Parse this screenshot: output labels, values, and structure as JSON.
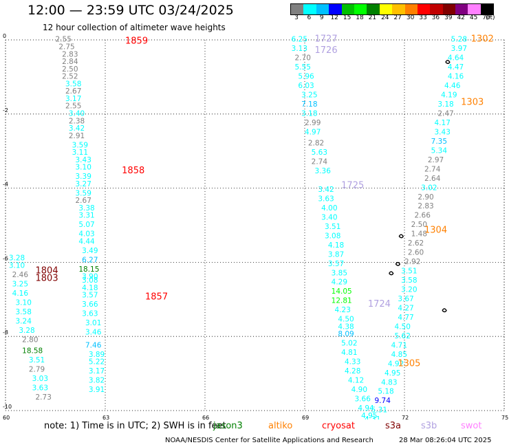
{
  "header": {
    "title": "12:00 — 23:59 UTC 03/24/2025",
    "subtitle": "12 hour collection of altimeter wave heights"
  },
  "colorbar": {
    "labels": [
      "3",
      "6",
      "9",
      "12",
      "15",
      "18",
      "21",
      "24",
      "27",
      "30",
      "33",
      "36",
      "39",
      "42",
      "45",
      "70"
    ],
    "unit_label": "(ft)",
    "colors": [
      "#808080",
      "#00ffff",
      "#00c0ff",
      "#0000ff",
      "#00c000",
      "#00ff00",
      "#008000",
      "#ffff00",
      "#ffc000",
      "#ff8000",
      "#ff0000",
      "#c00000",
      "#800000",
      "#800080",
      "#ff80ff",
      "#000000"
    ]
  },
  "map": {
    "lon_ticks": [
      "60",
      "63",
      "66",
      "69",
      "72",
      "75"
    ],
    "lat_ticks": [
      "0",
      "-2",
      "-4",
      "-6",
      "-8",
      "-10"
    ],
    "tracks": [
      {
        "label": "1859",
        "color": "#ff0000",
        "lon": 63.6,
        "lat": -0.1
      },
      {
        "label": "1858",
        "color": "#ff0000",
        "lon": 63.5,
        "lat": -3.6
      },
      {
        "label": "1857",
        "color": "#ff0000",
        "lon": 64.2,
        "lat": -7.0
      },
      {
        "label": "1804",
        "color": "#800000",
        "lon": 60.9,
        "lat": -6.3
      },
      {
        "label": "1803",
        "color": "#800000",
        "lon": 60.9,
        "lat": -6.5
      },
      {
        "label": "1727",
        "color": "#b0a0e0",
        "lon": 69.3,
        "lat": -0.05
      },
      {
        "label": "1726",
        "color": "#b0a0e0",
        "lon": 69.3,
        "lat": -0.35
      },
      {
        "label": "1725",
        "color": "#b0a0e0",
        "lon": 70.1,
        "lat": -4.0
      },
      {
        "label": "1724",
        "color": "#b0a0e0",
        "lon": 70.9,
        "lat": -7.2
      },
      {
        "label": "1302",
        "color": "#ff8000",
        "lon": 74.0,
        "lat": -0.05
      },
      {
        "label": "1303",
        "color": "#ff8000",
        "lon": 73.7,
        "lat": -1.75
      },
      {
        "label": "1304",
        "color": "#ff8000",
        "lon": 72.6,
        "lat": -5.2
      },
      {
        "label": "1305",
        "color": "#ff8000",
        "lon": 71.8,
        "lat": -8.8
      }
    ],
    "points": [
      {
        "lon": 61.5,
        "lat": -0.05,
        "v": "2.55",
        "c": "#808080"
      },
      {
        "lon": 61.6,
        "lat": -0.25,
        "v": "2.75",
        "c": "#808080"
      },
      {
        "lon": 61.7,
        "lat": -0.45,
        "v": "2.83",
        "c": "#808080"
      },
      {
        "lon": 61.7,
        "lat": -0.65,
        "v": "2.84",
        "c": "#808080"
      },
      {
        "lon": 61.7,
        "lat": -0.85,
        "v": "2.50",
        "c": "#808080"
      },
      {
        "lon": 61.7,
        "lat": -1.05,
        "v": "2.52",
        "c": "#808080"
      },
      {
        "lon": 61.8,
        "lat": -1.25,
        "v": "3.58",
        "c": "#00ffff"
      },
      {
        "lon": 61.8,
        "lat": -1.45,
        "v": "2.67",
        "c": "#808080"
      },
      {
        "lon": 61.8,
        "lat": -1.65,
        "v": "3.17",
        "c": "#00ffff"
      },
      {
        "lon": 61.8,
        "lat": -1.85,
        "v": "2.55",
        "c": "#808080"
      },
      {
        "lon": 61.9,
        "lat": -2.05,
        "v": "3.40",
        "c": "#00ffff"
      },
      {
        "lon": 61.9,
        "lat": -2.25,
        "v": "2.38",
        "c": "#808080"
      },
      {
        "lon": 61.9,
        "lat": -2.45,
        "v": "3.42",
        "c": "#00ffff"
      },
      {
        "lon": 61.9,
        "lat": -2.65,
        "v": "2.91",
        "c": "#808080"
      },
      {
        "lon": 62.0,
        "lat": -2.9,
        "v": "3.59",
        "c": "#00ffff"
      },
      {
        "lon": 62.0,
        "lat": -3.1,
        "v": "3.11",
        "c": "#00ffff"
      },
      {
        "lon": 62.1,
        "lat": -3.3,
        "v": "3.43",
        "c": "#00ffff"
      },
      {
        "lon": 62.1,
        "lat": -3.5,
        "v": "3.10",
        "c": "#00ffff"
      },
      {
        "lon": 62.1,
        "lat": -3.75,
        "v": "3.39",
        "c": "#00ffff"
      },
      {
        "lon": 62.1,
        "lat": -3.95,
        "v": "3.27",
        "c": "#00ffff"
      },
      {
        "lon": 62.1,
        "lat": -4.2,
        "v": "3.59",
        "c": "#00ffff"
      },
      {
        "lon": 62.1,
        "lat": -4.4,
        "v": "2.67",
        "c": "#808080"
      },
      {
        "lon": 62.2,
        "lat": -4.6,
        "v": "3.38",
        "c": "#00ffff"
      },
      {
        "lon": 62.2,
        "lat": -4.8,
        "v": "3.31",
        "c": "#00ffff"
      },
      {
        "lon": 62.2,
        "lat": -5.05,
        "v": "5.07",
        "c": "#00ffff"
      },
      {
        "lon": 62.2,
        "lat": -5.3,
        "v": "4.03",
        "c": "#00ffff"
      },
      {
        "lon": 62.2,
        "lat": -5.5,
        "v": "4.44",
        "c": "#00ffff"
      },
      {
        "lon": 62.3,
        "lat": -5.75,
        "v": "3.49",
        "c": "#00ffff"
      },
      {
        "lon": 62.3,
        "lat": -6.0,
        "v": "6.27",
        "c": "#00c0ff"
      },
      {
        "lon": 62.2,
        "lat": -6.25,
        "v": "18.15",
        "c": "#008000"
      },
      {
        "lon": 62.3,
        "lat": -6.45,
        "v": "3.90",
        "c": "#00ffff"
      },
      {
        "lon": 62.3,
        "lat": -6.55,
        "v": "3.08",
        "c": "#00ffff"
      },
      {
        "lon": 62.3,
        "lat": -6.75,
        "v": "4.18",
        "c": "#00ffff"
      },
      {
        "lon": 62.3,
        "lat": -6.95,
        "v": "3.57",
        "c": "#00ffff"
      },
      {
        "lon": 62.3,
        "lat": -7.2,
        "v": "3.66",
        "c": "#00ffff"
      },
      {
        "lon": 62.3,
        "lat": -7.45,
        "v": "3.63",
        "c": "#00ffff"
      },
      {
        "lon": 62.4,
        "lat": -7.7,
        "v": "3.01",
        "c": "#00ffff"
      },
      {
        "lon": 62.4,
        "lat": -7.95,
        "v": "3.46",
        "c": "#00ffff"
      },
      {
        "lon": 62.4,
        "lat": -8.3,
        "v": "7.46",
        "c": "#00c0ff"
      },
      {
        "lon": 62.5,
        "lat": -8.55,
        "v": "3.89",
        "c": "#00ffff"
      },
      {
        "lon": 62.5,
        "lat": -8.75,
        "v": "5.22",
        "c": "#00ffff"
      },
      {
        "lon": 62.5,
        "lat": -9.0,
        "v": "3.17",
        "c": "#00ffff"
      },
      {
        "lon": 62.5,
        "lat": -9.25,
        "v": "3.82",
        "c": "#00ffff"
      },
      {
        "lon": 62.5,
        "lat": -9.5,
        "v": "3.91",
        "c": "#00ffff"
      },
      {
        "lon": 60.1,
        "lat": -5.95,
        "v": "3.28",
        "c": "#00ffff"
      },
      {
        "lon": 60.1,
        "lat": -6.15,
        "v": "3.10",
        "c": "#00ffff"
      },
      {
        "lon": 60.2,
        "lat": -6.4,
        "v": "2.46",
        "c": "#808080"
      },
      {
        "lon": 60.2,
        "lat": -6.65,
        "v": "3.25",
        "c": "#00ffff"
      },
      {
        "lon": 60.2,
        "lat": -6.9,
        "v": "4.16",
        "c": "#00ffff"
      },
      {
        "lon": 60.3,
        "lat": -7.15,
        "v": "3.10",
        "c": "#00ffff"
      },
      {
        "lon": 60.3,
        "lat": -7.4,
        "v": "3.58",
        "c": "#00ffff"
      },
      {
        "lon": 60.3,
        "lat": -7.65,
        "v": "3.24",
        "c": "#00ffff"
      },
      {
        "lon": 60.4,
        "lat": -7.9,
        "v": "3.28",
        "c": "#00ffff"
      },
      {
        "lon": 60.5,
        "lat": -8.15,
        "v": "2.80",
        "c": "#808080"
      },
      {
        "lon": 60.5,
        "lat": -8.45,
        "v": "18.58",
        "c": "#008000"
      },
      {
        "lon": 60.7,
        "lat": -8.7,
        "v": "3.51",
        "c": "#00ffff"
      },
      {
        "lon": 60.7,
        "lat": -8.95,
        "v": "2.79",
        "c": "#808080"
      },
      {
        "lon": 60.8,
        "lat": -9.2,
        "v": "3.03",
        "c": "#00ffff"
      },
      {
        "lon": 60.8,
        "lat": -9.45,
        "v": "3.63",
        "c": "#00ffff"
      },
      {
        "lon": 60.9,
        "lat": -9.7,
        "v": "2.73",
        "c": "#808080"
      },
      {
        "lon": 68.6,
        "lat": -0.05,
        "v": "6.25",
        "c": "#00ffff"
      },
      {
        "lon": 68.6,
        "lat": -0.3,
        "v": "3.13",
        "c": "#00ffff"
      },
      {
        "lon": 68.7,
        "lat": -0.55,
        "v": "2.70",
        "c": "#808080"
      },
      {
        "lon": 68.7,
        "lat": -0.8,
        "v": "5.55",
        "c": "#00ffff"
      },
      {
        "lon": 68.8,
        "lat": -1.05,
        "v": "5.96",
        "c": "#00ffff"
      },
      {
        "lon": 68.8,
        "lat": -1.3,
        "v": "6.03",
        "c": "#00ffff"
      },
      {
        "lon": 68.9,
        "lat": -1.55,
        "v": "3.25",
        "c": "#00ffff"
      },
      {
        "lon": 68.9,
        "lat": -1.8,
        "v": "7.18",
        "c": "#00c0ff"
      },
      {
        "lon": 68.9,
        "lat": -2.05,
        "v": "3.18",
        "c": "#00ffff"
      },
      {
        "lon": 69.0,
        "lat": -2.3,
        "v": "2.99",
        "c": "#808080"
      },
      {
        "lon": 69.0,
        "lat": -2.55,
        "v": "4.97",
        "c": "#00ffff"
      },
      {
        "lon": 69.1,
        "lat": -2.85,
        "v": "2.82",
        "c": "#808080"
      },
      {
        "lon": 69.2,
        "lat": -3.1,
        "v": "5.63",
        "c": "#00ffff"
      },
      {
        "lon": 69.2,
        "lat": -3.35,
        "v": "2.74",
        "c": "#808080"
      },
      {
        "lon": 69.3,
        "lat": -3.6,
        "v": "3.36",
        "c": "#00ffff"
      },
      {
        "lon": 69.4,
        "lat": -4.1,
        "v": "3.42",
        "c": "#00ffff"
      },
      {
        "lon": 69.4,
        "lat": -4.35,
        "v": "3.63",
        "c": "#00ffff"
      },
      {
        "lon": 69.5,
        "lat": -4.6,
        "v": "4.00",
        "c": "#00ffff"
      },
      {
        "lon": 69.5,
        "lat": -4.85,
        "v": "3.40",
        "c": "#00ffff"
      },
      {
        "lon": 69.6,
        "lat": -5.1,
        "v": "3.51",
        "c": "#00ffff"
      },
      {
        "lon": 69.6,
        "lat": -5.35,
        "v": "3.08",
        "c": "#00ffff"
      },
      {
        "lon": 69.7,
        "lat": -5.6,
        "v": "4.18",
        "c": "#00ffff"
      },
      {
        "lon": 69.7,
        "lat": -5.85,
        "v": "3.87",
        "c": "#00ffff"
      },
      {
        "lon": 69.7,
        "lat": -6.1,
        "v": "3.57",
        "c": "#00ffff"
      },
      {
        "lon": 69.8,
        "lat": -6.35,
        "v": "3.85",
        "c": "#00ffff"
      },
      {
        "lon": 69.8,
        "lat": -6.6,
        "v": "4.29",
        "c": "#00ffff"
      },
      {
        "lon": 69.8,
        "lat": -6.85,
        "v": "14.05",
        "c": "#00ff00"
      },
      {
        "lon": 69.8,
        "lat": -7.1,
        "v": "12.81",
        "c": "#00ff00"
      },
      {
        "lon": 69.9,
        "lat": -7.35,
        "v": "4.23",
        "c": "#00ffff"
      },
      {
        "lon": 70.0,
        "lat": -7.6,
        "v": "4.50",
        "c": "#00ffff"
      },
      {
        "lon": 70.0,
        "lat": -7.8,
        "v": "4.38",
        "c": "#00ffff"
      },
      {
        "lon": 70.0,
        "lat": -8.0,
        "v": "8.09",
        "c": "#00c0ff"
      },
      {
        "lon": 70.1,
        "lat": -8.25,
        "v": "5.02",
        "c": "#00ffff"
      },
      {
        "lon": 70.1,
        "lat": -8.5,
        "v": "4.81",
        "c": "#00ffff"
      },
      {
        "lon": 70.2,
        "lat": -8.75,
        "v": "4.33",
        "c": "#00ffff"
      },
      {
        "lon": 70.2,
        "lat": -9.0,
        "v": "4.28",
        "c": "#00ffff"
      },
      {
        "lon": 70.3,
        "lat": -9.25,
        "v": "4.12",
        "c": "#00ffff"
      },
      {
        "lon": 70.4,
        "lat": -9.5,
        "v": "4.90",
        "c": "#00ffff"
      },
      {
        "lon": 70.5,
        "lat": -9.75,
        "v": "3.66",
        "c": "#00ffff"
      },
      {
        "lon": 70.6,
        "lat": -10.0,
        "v": "4.94",
        "c": "#00ffff"
      },
      {
        "lon": 70.7,
        "lat": -10.2,
        "v": "4.95",
        "c": "#00ffff"
      },
      {
        "lon": 70.8,
        "lat": -10.3,
        "v": "4.31",
        "c": "#00ffff"
      },
      {
        "lon": 73.4,
        "lat": -0.05,
        "v": "5.28",
        "c": "#00ffff"
      },
      {
        "lon": 73.4,
        "lat": -0.3,
        "v": "3.97",
        "c": "#00ffff"
      },
      {
        "lon": 73.3,
        "lat": -0.55,
        "v": "4.64",
        "c": "#00ffff"
      },
      {
        "lon": 73.3,
        "lat": -0.8,
        "v": "4.47",
        "c": "#00ffff"
      },
      {
        "lon": 73.3,
        "lat": -1.05,
        "v": "4.16",
        "c": "#00ffff"
      },
      {
        "lon": 73.2,
        "lat": -1.3,
        "v": "4.46",
        "c": "#00ffff"
      },
      {
        "lon": 73.1,
        "lat": -1.55,
        "v": "4.19",
        "c": "#00ffff"
      },
      {
        "lon": 73.0,
        "lat": -1.8,
        "v": "3.18",
        "c": "#00ffff"
      },
      {
        "lon": 73.0,
        "lat": -2.05,
        "v": "2.47",
        "c": "#808080"
      },
      {
        "lon": 72.9,
        "lat": -2.3,
        "v": "4.17",
        "c": "#00ffff"
      },
      {
        "lon": 72.9,
        "lat": -2.55,
        "v": "3.43",
        "c": "#00ffff"
      },
      {
        "lon": 72.8,
        "lat": -2.8,
        "v": "7.35",
        "c": "#00c0ff"
      },
      {
        "lon": 72.8,
        "lat": -3.05,
        "v": "5.34",
        "c": "#00ffff"
      },
      {
        "lon": 72.7,
        "lat": -3.3,
        "v": "2.97",
        "c": "#808080"
      },
      {
        "lon": 72.6,
        "lat": -3.55,
        "v": "2.74",
        "c": "#808080"
      },
      {
        "lon": 72.6,
        "lat": -3.8,
        "v": "2.64",
        "c": "#808080"
      },
      {
        "lon": 72.5,
        "lat": -4.05,
        "v": "3.02",
        "c": "#00ffff"
      },
      {
        "lon": 72.4,
        "lat": -4.3,
        "v": "2.90",
        "c": "#808080"
      },
      {
        "lon": 72.4,
        "lat": -4.55,
        "v": "2.83",
        "c": "#808080"
      },
      {
        "lon": 72.3,
        "lat": -4.8,
        "v": "2.66",
        "c": "#808080"
      },
      {
        "lon": 72.2,
        "lat": -5.05,
        "v": "2.50",
        "c": "#808080"
      },
      {
        "lon": 72.2,
        "lat": -5.3,
        "v": "1.48",
        "c": "#808080"
      },
      {
        "lon": 72.1,
        "lat": -5.55,
        "v": "2.62",
        "c": "#808080"
      },
      {
        "lon": 72.1,
        "lat": -5.8,
        "v": "2.60",
        "c": "#808080"
      },
      {
        "lon": 72.0,
        "lat": -6.05,
        "v": "2.92",
        "c": "#808080"
      },
      {
        "lon": 71.9,
        "lat": -6.3,
        "v": "3.51",
        "c": "#00ffff"
      },
      {
        "lon": 71.9,
        "lat": -6.55,
        "v": "3.58",
        "c": "#00ffff"
      },
      {
        "lon": 71.9,
        "lat": -6.8,
        "v": "3.20",
        "c": "#00ffff"
      },
      {
        "lon": 71.8,
        "lat": -7.05,
        "v": "3.67",
        "c": "#00ffff"
      },
      {
        "lon": 71.8,
        "lat": -7.3,
        "v": "4.27",
        "c": "#00ffff"
      },
      {
        "lon": 71.8,
        "lat": -7.55,
        "v": "4.77",
        "c": "#00ffff"
      },
      {
        "lon": 71.7,
        "lat": -7.8,
        "v": "4.50",
        "c": "#00ffff"
      },
      {
        "lon": 71.7,
        "lat": -8.05,
        "v": "5.62",
        "c": "#00ffff"
      },
      {
        "lon": 71.6,
        "lat": -8.3,
        "v": "4.71",
        "c": "#00ffff"
      },
      {
        "lon": 71.6,
        "lat": -8.55,
        "v": "4.85",
        "c": "#00ffff"
      },
      {
        "lon": 71.5,
        "lat": -8.8,
        "v": "4.92",
        "c": "#00ffff"
      },
      {
        "lon": 71.4,
        "lat": -9.05,
        "v": "4.95",
        "c": "#00ffff"
      },
      {
        "lon": 71.3,
        "lat": -9.3,
        "v": "4.83",
        "c": "#00ffff"
      },
      {
        "lon": 71.2,
        "lat": -9.55,
        "v": "5.18",
        "c": "#00ffff"
      },
      {
        "lon": 71.1,
        "lat": -9.8,
        "v": "9.74",
        "c": "#0000ff"
      },
      {
        "lon": 71.0,
        "lat": -10.05,
        "v": "5.31",
        "c": "#00ffff"
      }
    ]
  },
  "notes": {
    "text": "note: 1) Time is in UTC; 2) SWH is in feet",
    "legend": [
      {
        "label": "jason3",
        "color": "#008000"
      },
      {
        "label": "altiko",
        "color": "#ff8000"
      },
      {
        "label": "cryosat",
        "color": "#ff0000"
      },
      {
        "label": "s3a",
        "color": "#800000"
      },
      {
        "label": "s3b",
        "color": "#b0a0e0"
      },
      {
        "label": "swot",
        "color": "#ff80ff"
      }
    ]
  },
  "footer": {
    "center": "NOAA/NESDIS Center for Satellite Applications and Research",
    "right": "28 Mar 08:26:04 UTC 2025"
  }
}
